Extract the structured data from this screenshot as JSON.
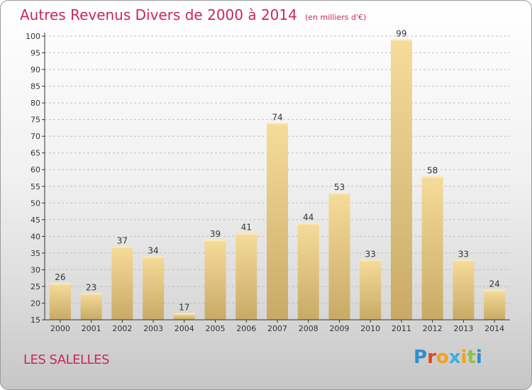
{
  "header": {
    "title": "Autres Revenus Divers de 2000 à 2014",
    "unit": "(en milliers d'€)"
  },
  "footer": {
    "commune": "LES SALELLES",
    "logo_letters": [
      "P",
      "r",
      "o",
      "x",
      "i",
      "t",
      "i"
    ],
    "logo_colors": [
      "#2a8fd0",
      "#e8441b",
      "#f2a31a",
      "#3bb0e0",
      "#f2a31a",
      "#8cc63f",
      "#2a8fd0"
    ]
  },
  "colors": {
    "title": "#c8285a",
    "bar_light": "#f6dc9a",
    "bar_dark": "#c8aa66",
    "grid": "#c0c0c0",
    "axis": "#333333"
  },
  "chart_data": {
    "type": "bar",
    "categories": [
      "2000",
      "2001",
      "2002",
      "2003",
      "2004",
      "2005",
      "2006",
      "2007",
      "2008",
      "2009",
      "2010",
      "2011",
      "2012",
      "2013",
      "2014"
    ],
    "values": [
      26,
      23,
      37,
      34,
      17,
      39,
      41,
      74,
      44,
      53,
      33,
      99,
      58,
      33,
      24
    ],
    "ylim": [
      15,
      100
    ],
    "yticks": [
      15,
      20,
      25,
      30,
      35,
      40,
      45,
      50,
      55,
      60,
      65,
      70,
      75,
      80,
      85,
      90,
      95,
      100
    ],
    "grid": true,
    "gridlines": "horizontal dashed",
    "data_labels": true
  }
}
